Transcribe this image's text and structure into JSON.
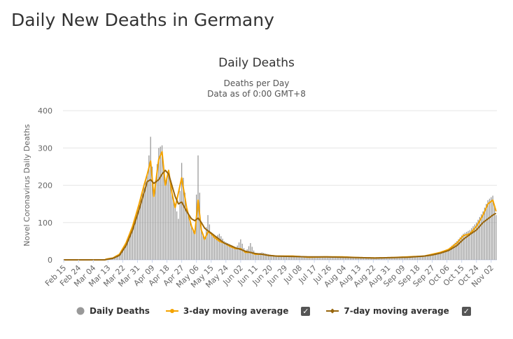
{
  "page": {
    "title": "Daily New Deaths in Germany"
  },
  "legend": {
    "items": [
      {
        "label": "Daily Deaths",
        "color": "#999999",
        "icon": "circle-icon"
      },
      {
        "label": "3-day moving average",
        "color": "#f4a300",
        "icon": "line-marker-icon"
      },
      {
        "label": "7-day moving average",
        "color": "#98660e",
        "icon": "line-marker-icon"
      }
    ],
    "check_glyph": "✓"
  },
  "chart_data": {
    "type": "bar",
    "title": "Daily Deaths",
    "subtitle": [
      "Deaths per Day",
      "Data as of 0:00 GMT+8"
    ],
    "xlabel": "",
    "ylabel": "Novel Coronavirus Daily Deaths",
    "ylim": [
      0,
      400
    ],
    "yticks": [
      0,
      100,
      200,
      300,
      400
    ],
    "grid": true,
    "legend_position": "bottom",
    "x_start": "Feb 15",
    "num_days": 265,
    "x_tick_labels": [
      "Feb 15",
      "Feb 24",
      "Mar 04",
      "Mar 13",
      "Mar 22",
      "Mar 31",
      "Apr 09",
      "Apr 18",
      "Apr 27",
      "May 06",
      "May 15",
      "May 24",
      "Jun 02",
      "Jun 11",
      "Jun 20",
      "Jun 29",
      "Jul 08",
      "Jul 17",
      "Jul 26",
      "Aug 04",
      "Aug 13",
      "Aug 22",
      "Aug 31",
      "Sep 09",
      "Sep 18",
      "Sep 27",
      "Oct 06",
      "Oct 15",
      "Oct 24",
      "Nov 02"
    ],
    "series": [
      {
        "name": "Daily Deaths",
        "color": "#999999",
        "keypoints": [
          [
            0,
            0
          ],
          [
            25,
            0
          ],
          [
            26,
            2
          ],
          [
            30,
            5
          ],
          [
            34,
            15
          ],
          [
            38,
            45
          ],
          [
            42,
            90
          ],
          [
            46,
            150
          ],
          [
            49,
            200
          ],
          [
            51,
            230
          ],
          [
            53,
            330
          ],
          [
            55,
            170
          ],
          [
            58,
            300
          ],
          [
            60,
            307
          ],
          [
            62,
            200
          ],
          [
            64,
            240
          ],
          [
            66,
            180
          ],
          [
            68,
            150
          ],
          [
            70,
            110
          ],
          [
            72,
            260
          ],
          [
            75,
            140
          ],
          [
            78,
            90
          ],
          [
            80,
            70
          ],
          [
            82,
            280
          ],
          [
            84,
            80
          ],
          [
            86,
            55
          ],
          [
            88,
            120
          ],
          [
            90,
            70
          ],
          [
            92,
            60
          ],
          [
            95,
            70
          ],
          [
            98,
            50
          ],
          [
            102,
            40
          ],
          [
            105,
            30
          ],
          [
            108,
            55
          ],
          [
            111,
            20
          ],
          [
            114,
            45
          ],
          [
            117,
            15
          ],
          [
            121,
            20
          ],
          [
            125,
            15
          ],
          [
            130,
            10
          ],
          [
            140,
            10
          ],
          [
            150,
            7
          ],
          [
            160,
            8
          ],
          [
            170,
            8
          ],
          [
            180,
            6
          ],
          [
            190,
            5
          ],
          [
            200,
            6
          ],
          [
            210,
            8
          ],
          [
            220,
            10
          ],
          [
            225,
            15
          ],
          [
            230,
            20
          ],
          [
            235,
            30
          ],
          [
            240,
            50
          ],
          [
            244,
            70
          ],
          [
            248,
            80
          ],
          [
            252,
            100
          ],
          [
            256,
            130
          ],
          [
            259,
            160
          ],
          [
            262,
            172
          ],
          [
            264,
            120
          ]
        ]
      },
      {
        "name": "3-day moving average",
        "color": "#f4a300",
        "keypoints": [
          [
            0,
            0
          ],
          [
            25,
            0
          ],
          [
            26,
            2
          ],
          [
            30,
            5
          ],
          [
            34,
            15
          ],
          [
            38,
            45
          ],
          [
            42,
            90
          ],
          [
            46,
            150
          ],
          [
            49,
            200
          ],
          [
            51,
            230
          ],
          [
            53,
            265
          ],
          [
            55,
            170
          ],
          [
            58,
            270
          ],
          [
            60,
            290
          ],
          [
            62,
            200
          ],
          [
            64,
            240
          ],
          [
            66,
            180
          ],
          [
            68,
            140
          ],
          [
            70,
            180
          ],
          [
            72,
            220
          ],
          [
            75,
            140
          ],
          [
            78,
            90
          ],
          [
            80,
            70
          ],
          [
            82,
            160
          ],
          [
            84,
            80
          ],
          [
            86,
            55
          ],
          [
            88,
            75
          ],
          [
            90,
            70
          ],
          [
            92,
            60
          ],
          [
            95,
            50
          ],
          [
            98,
            45
          ],
          [
            102,
            35
          ],
          [
            105,
            30
          ],
          [
            108,
            30
          ],
          [
            111,
            20
          ],
          [
            114,
            20
          ],
          [
            117,
            15
          ],
          [
            121,
            15
          ],
          [
            125,
            12
          ],
          [
            130,
            10
          ],
          [
            140,
            10
          ],
          [
            150,
            7
          ],
          [
            160,
            8
          ],
          [
            170,
            8
          ],
          [
            180,
            6
          ],
          [
            190,
            5
          ],
          [
            200,
            6
          ],
          [
            210,
            8
          ],
          [
            220,
            10
          ],
          [
            225,
            15
          ],
          [
            230,
            20
          ],
          [
            235,
            28
          ],
          [
            240,
            45
          ],
          [
            244,
            65
          ],
          [
            248,
            70
          ],
          [
            252,
            90
          ],
          [
            256,
            120
          ],
          [
            259,
            150
          ],
          [
            262,
            160
          ],
          [
            264,
            130
          ]
        ]
      },
      {
        "name": "7-day moving average",
        "color": "#98660e",
        "keypoints": [
          [
            0,
            0
          ],
          [
            25,
            0
          ],
          [
            26,
            1
          ],
          [
            30,
            4
          ],
          [
            34,
            12
          ],
          [
            38,
            38
          ],
          [
            42,
            80
          ],
          [
            46,
            135
          ],
          [
            49,
            180
          ],
          [
            51,
            210
          ],
          [
            53,
            215
          ],
          [
            55,
            205
          ],
          [
            58,
            215
          ],
          [
            60,
            230
          ],
          [
            62,
            240
          ],
          [
            64,
            230
          ],
          [
            66,
            200
          ],
          [
            68,
            170
          ],
          [
            70,
            150
          ],
          [
            72,
            155
          ],
          [
            75,
            130
          ],
          [
            78,
            110
          ],
          [
            80,
            105
          ],
          [
            82,
            112
          ],
          [
            84,
            100
          ],
          [
            86,
            85
          ],
          [
            88,
            78
          ],
          [
            90,
            72
          ],
          [
            92,
            65
          ],
          [
            95,
            55
          ],
          [
            98,
            45
          ],
          [
            102,
            38
          ],
          [
            105,
            32
          ],
          [
            108,
            28
          ],
          [
            111,
            23
          ],
          [
            114,
            20
          ],
          [
            117,
            17
          ],
          [
            121,
            15
          ],
          [
            125,
            12
          ],
          [
            130,
            10
          ],
          [
            140,
            9
          ],
          [
            150,
            8
          ],
          [
            160,
            8
          ],
          [
            170,
            7
          ],
          [
            180,
            6
          ],
          [
            190,
            5
          ],
          [
            200,
            6
          ],
          [
            210,
            7
          ],
          [
            220,
            10
          ],
          [
            225,
            13
          ],
          [
            230,
            18
          ],
          [
            235,
            25
          ],
          [
            240,
            38
          ],
          [
            244,
            55
          ],
          [
            248,
            68
          ],
          [
            252,
            80
          ],
          [
            256,
            100
          ],
          [
            259,
            110
          ],
          [
            262,
            120
          ],
          [
            264,
            125
          ]
        ]
      }
    ]
  }
}
